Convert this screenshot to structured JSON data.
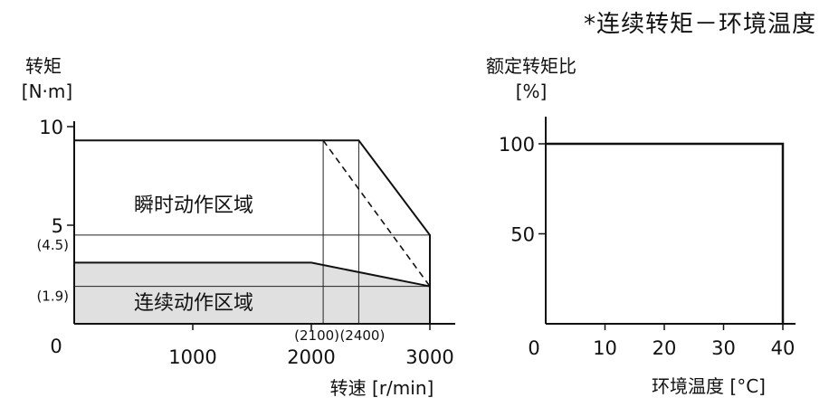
{
  "note": "*连续转矩－环境温度",
  "chart_data": [
    {
      "type": "area",
      "ylabel": "转矩",
      "yunit": "[N·m]",
      "xlabel": "转速 [r/min]",
      "xlim": [
        0,
        3000
      ],
      "ylim": [
        0,
        10
      ],
      "x_ticks": [
        "0",
        "1000",
        "2000",
        "3000"
      ],
      "y_ticks": [
        "10",
        "5"
      ],
      "y_marks": [
        {
          "label": "(4.5)",
          "value": 4.5
        },
        {
          "label": "(1.9)",
          "value": 1.9
        }
      ],
      "x_marks": [
        {
          "label": "(2100)",
          "value": 2100
        },
        {
          "label": "(2400)",
          "value": 2400
        }
      ],
      "series": [
        {
          "name": "瞬时动作区域",
          "x": [
            0,
            2400,
            3000,
            3000
          ],
          "y": [
            9.3,
            9.3,
            4.5,
            0
          ]
        },
        {
          "name": "连续动作区域",
          "x": [
            0,
            2000,
            3000
          ],
          "y": [
            3.1,
            3.1,
            1.9
          ]
        },
        {
          "x": [
            2100,
            3000
          ],
          "y": [
            9.3,
            1.9
          ],
          "style": "dashed"
        }
      ],
      "grid": false
    },
    {
      "type": "line",
      "ylabel": "额定转矩比",
      "yunit": "[%]",
      "xlabel": "环境温度 [°C]",
      "xlim": [
        0,
        40
      ],
      "ylim": [
        0,
        100
      ],
      "x_ticks": [
        "0",
        "10",
        "20",
        "30",
        "40"
      ],
      "y_ticks": [
        "100",
        "50"
      ],
      "series": [
        {
          "x": [
            0,
            40,
            40
          ],
          "y": [
            100,
            100,
            0
          ]
        }
      ],
      "grid": false
    }
  ]
}
